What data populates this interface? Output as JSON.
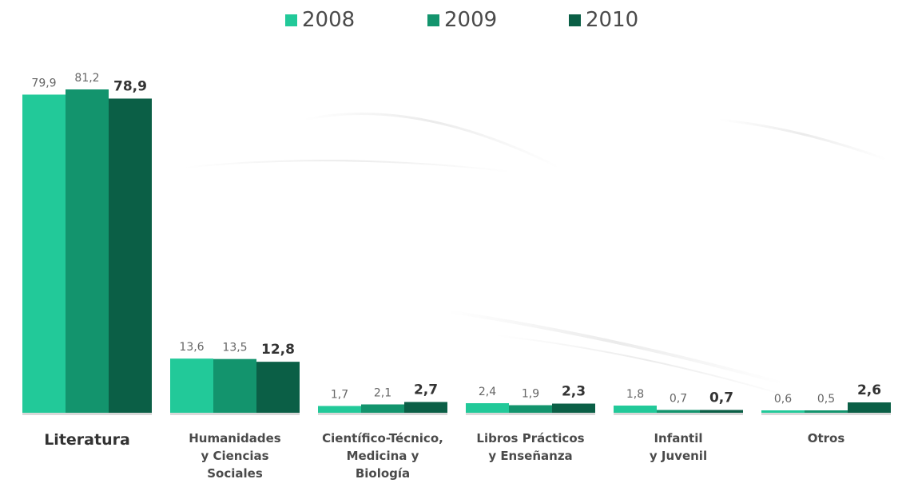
{
  "chart_data": {
    "type": "bar",
    "categories": [
      [
        "Literatura"
      ],
      [
        "Humanidades",
        "y Ciencias",
        "Sociales"
      ],
      [
        "Científico-Técnico,",
        "Medicina y",
        "Biología"
      ],
      [
        "Libros Prácticos",
        "y Enseñanza"
      ],
      [
        "Infantil",
        "y Juvenil"
      ],
      [
        "Otros"
      ]
    ],
    "series": [
      {
        "name": "2008",
        "color": "#22c999",
        "values": [
          79.9,
          13.6,
          1.7,
          2.4,
          1.8,
          0.6
        ],
        "labels": [
          "79,9",
          "13,6",
          "1,7",
          "2,4",
          "1,8",
          "0,6"
        ]
      },
      {
        "name": "2009",
        "color": "#13946d",
        "values": [
          81.2,
          13.5,
          2.1,
          1.9,
          0.7,
          0.5
        ],
        "labels": [
          "81,2",
          "13,5",
          "2,1",
          "1,9",
          "0,7",
          "0,5"
        ]
      },
      {
        "name": "2010",
        "color": "#0b5f46",
        "values": [
          78.9,
          12.8,
          2.7,
          2.3,
          0.7,
          2.6
        ],
        "labels": [
          "78,9",
          "12,8",
          "2,7",
          "2,3",
          "0,7",
          "2,6"
        ]
      }
    ],
    "highlight_series": "2010",
    "legend_position": "top-center",
    "grid": false,
    "ylim": [
      0,
      85
    ]
  }
}
